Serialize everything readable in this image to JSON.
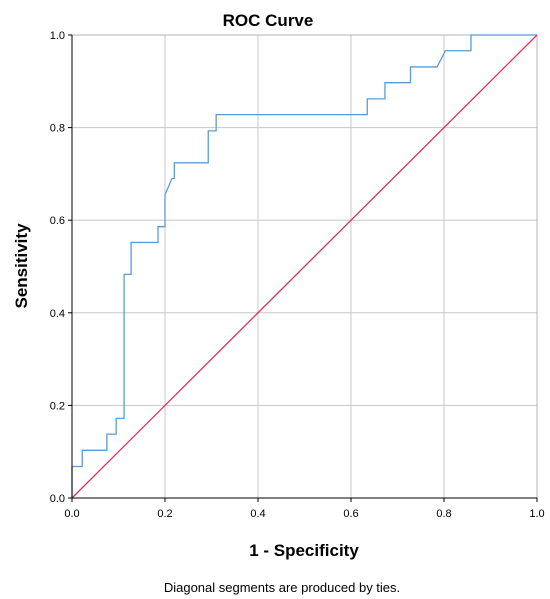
{
  "chart_data": {
    "type": "line",
    "title": "ROC Curve",
    "xlabel": "1 - Specificity",
    "ylabel": "Sensitivity",
    "xlim": [
      0.0,
      1.0
    ],
    "ylim": [
      0.0,
      1.0
    ],
    "x_ticks": [
      0.0,
      0.2,
      0.4,
      0.6,
      0.8,
      1.0
    ],
    "y_ticks": [
      0.0,
      0.2,
      0.4,
      0.6,
      0.8,
      1.0
    ],
    "x_tick_labels": [
      "0.0",
      "0.2",
      "0.4",
      "0.6",
      "0.8",
      "1.0"
    ],
    "y_tick_labels": [
      "0.0",
      "0.2",
      "0.4",
      "0.6",
      "0.8",
      "1.0"
    ],
    "grid": true,
    "footnote": "Diagonal segments are produced by ties.",
    "series": [
      {
        "color": "#5b9bd5",
        "x": [
          0.0,
          0.0,
          0.022,
          0.022,
          0.075,
          0.075,
          0.095,
          0.095,
          0.112,
          0.112,
          0.127,
          0.127,
          0.185,
          0.185,
          0.2,
          0.2,
          0.215,
          0.22,
          0.22,
          0.293,
          0.293,
          0.31,
          0.31,
          0.635,
          0.635,
          0.673,
          0.673,
          0.728,
          0.728,
          0.785,
          0.803,
          0.803,
          0.858,
          0.858,
          1.0
        ],
        "y": [
          0.0,
          0.068,
          0.068,
          0.103,
          0.103,
          0.138,
          0.138,
          0.172,
          0.172,
          0.483,
          0.483,
          0.552,
          0.552,
          0.586,
          0.586,
          0.655,
          0.69,
          0.69,
          0.724,
          0.724,
          0.793,
          0.793,
          0.828,
          0.828,
          0.862,
          0.862,
          0.897,
          0.897,
          0.931,
          0.931,
          0.966,
          0.966,
          0.966,
          1.0,
          1.0
        ]
      },
      {
        "color": "#d6355c",
        "x": [
          0.0,
          1.0
        ],
        "y": [
          0.0,
          1.0
        ]
      }
    ]
  }
}
